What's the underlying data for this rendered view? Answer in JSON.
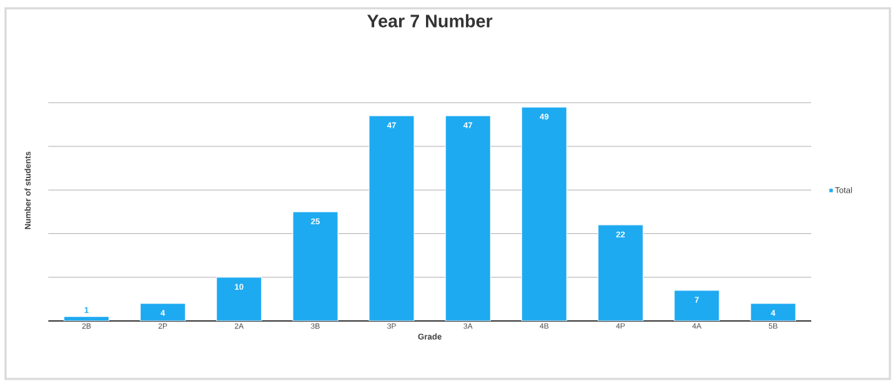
{
  "chart_data": {
    "type": "bar",
    "title": "Year 7 Number",
    "xlabel": "Grade",
    "ylabel": "Number of students",
    "categories": [
      "2B",
      "2P",
      "2A",
      "3B",
      "3P",
      "3A",
      "4B",
      "4P",
      "4A",
      "5B"
    ],
    "series": [
      {
        "name": "Total",
        "color": "#1eaaf1",
        "values": [
          1,
          4,
          10,
          25,
          47,
          47,
          49,
          22,
          7,
          4
        ]
      }
    ],
    "grid": "y",
    "legend": "right",
    "tick_labels": "x",
    "data_labels": true
  }
}
